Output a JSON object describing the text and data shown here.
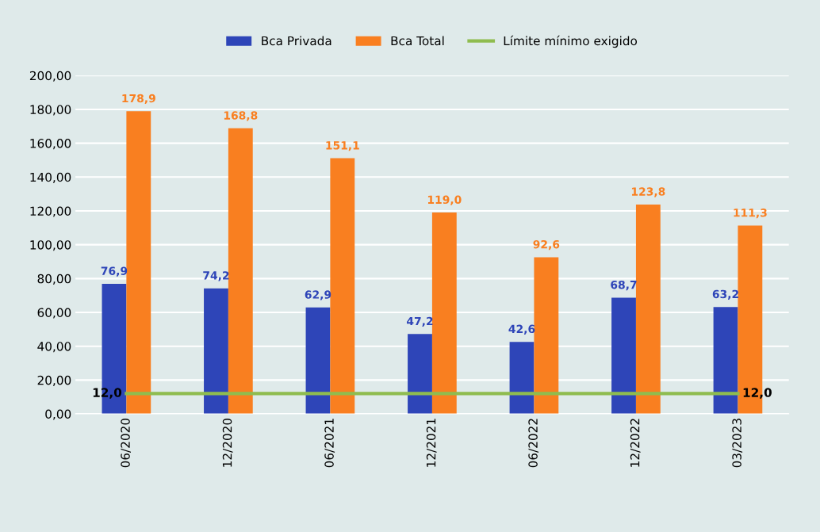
{
  "chart_data": {
    "type": "bar",
    "categories": [
      "06/2020",
      "12/2020",
      "06/2021",
      "12/2021",
      "06/2022",
      "12/2022",
      "03/2023"
    ],
    "series": [
      {
        "name": "Bca Privada",
        "color": "#2e45b8",
        "values": [
          76.9,
          74.2,
          62.9,
          47.2,
          42.6,
          68.7,
          63.2
        ],
        "value_labels": [
          "76,9",
          "74,2",
          "62,9",
          "47,2",
          "42,6",
          "68,7",
          "63,2"
        ]
      },
      {
        "name": "Bca Total",
        "color": "#f97f20",
        "values": [
          178.9,
          168.8,
          151.1,
          119.0,
          92.6,
          123.8,
          111.3
        ],
        "value_labels": [
          "178,9",
          "168,8",
          "151,1",
          "119,0",
          "92,6",
          "123,8",
          "111,3"
        ]
      },
      {
        "name": "Límite mínimo exigido",
        "type": "line",
        "color": "#8fbc4f",
        "values": [
          12.0,
          12.0,
          12.0,
          12.0,
          12.0,
          12.0,
          12.0
        ],
        "value_labels": [
          "12,0",
          null,
          null,
          null,
          null,
          null,
          "12,0"
        ]
      }
    ],
    "ylim": [
      0,
      200
    ],
    "yticks": [
      {
        "value": 0,
        "label": "0,00"
      },
      {
        "value": 20,
        "label": "20,00"
      },
      {
        "value": 40,
        "label": "40,00"
      },
      {
        "value": 60,
        "label": "60,00"
      },
      {
        "value": 80,
        "label": "80,00"
      },
      {
        "value": 100,
        "label": "100,00"
      },
      {
        "value": 120,
        "label": "120,00"
      },
      {
        "value": 140,
        "label": "140,00"
      },
      {
        "value": 160,
        "label": "160,00"
      },
      {
        "value": 180,
        "label": "180,00"
      },
      {
        "value": 200,
        "label": "200,00"
      }
    ],
    "grid": "y",
    "legend": "top"
  }
}
